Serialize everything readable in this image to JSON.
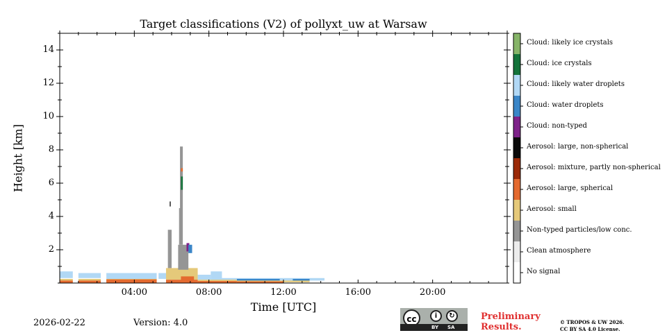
{
  "chart_data": {
    "type": "heatmap",
    "title": "Target classifications (V2) of pollyxt_uw at Warsaw",
    "xlabel": "Time [UTC]",
    "ylabel": "Height [km]",
    "xlim_hours": [
      0,
      24
    ],
    "ylim_km": [
      0,
      15
    ],
    "x_ticks": [
      {
        "value": 4,
        "label": "04:00"
      },
      {
        "value": 8,
        "label": "08:00"
      },
      {
        "value": 12,
        "label": "12:00"
      },
      {
        "value": 16,
        "label": "16:00"
      },
      {
        "value": 20,
        "label": "20:00"
      }
    ],
    "y_ticks": [
      {
        "value": 2,
        "label": "2"
      },
      {
        "value": 4,
        "label": "4"
      },
      {
        "value": 6,
        "label": "6"
      },
      {
        "value": 8,
        "label": "8"
      },
      {
        "value": 10,
        "label": "10"
      },
      {
        "value": 12,
        "label": "12"
      },
      {
        "value": 14,
        "label": "14"
      }
    ],
    "classes": [
      {
        "code": 0,
        "label": "No signal",
        "color": "#ffffff"
      },
      {
        "code": 1,
        "label": "Clean atmosphere",
        "color": "#ececec"
      },
      {
        "code": 2,
        "label": "Non-typed particles/low conc.",
        "color": "#959595"
      },
      {
        "code": 3,
        "label": "Aerosol: small",
        "color": "#e5c97a"
      },
      {
        "code": 4,
        "label": "Aerosol: large, spherical",
        "color": "#e46a2f"
      },
      {
        "code": 5,
        "label": "Aerosol: mixture, partly non-spherical",
        "color": "#9b2a08"
      },
      {
        "code": 6,
        "label": "Aerosol: large, non-spherical",
        "color": "#0a0a0a"
      },
      {
        "code": 7,
        "label": "Cloud: non-typed",
        "color": "#7e2289"
      },
      {
        "code": 8,
        "label": "Cloud: water droplets",
        "color": "#3a86c8"
      },
      {
        "code": 9,
        "label": "Cloud: likely water droplets",
        "color": "#b1d8f5"
      },
      {
        "code": 10,
        "label": "Cloud: ice crystals",
        "color": "#14733a"
      },
      {
        "code": 11,
        "label": "Cloud: likely ice crystals",
        "color": "#86b468"
      }
    ],
    "regions": [
      {
        "class": 9,
        "t0": 0.0,
        "t1": 0.7,
        "h0": 0.3,
        "h1": 0.7
      },
      {
        "class": 9,
        "t0": 1.0,
        "t1": 2.2,
        "h0": 0.3,
        "h1": 0.6
      },
      {
        "class": 9,
        "t0": 2.5,
        "t1": 5.2,
        "h0": 0.25,
        "h1": 0.6
      },
      {
        "class": 9,
        "t0": 5.3,
        "t1": 5.8,
        "h0": 0.25,
        "h1": 0.6
      },
      {
        "class": 9,
        "t0": 7.4,
        "t1": 8.1,
        "h0": 0.2,
        "h1": 0.5
      },
      {
        "class": 9,
        "t0": 8.1,
        "t1": 8.7,
        "h0": 0.1,
        "h1": 0.7
      },
      {
        "class": 9,
        "t0": 8.7,
        "t1": 14.2,
        "h0": 0.15,
        "h1": 0.3
      },
      {
        "class": 8,
        "t0": 9.5,
        "t1": 11.8,
        "h0": 0.1,
        "h1": 0.25
      },
      {
        "class": 8,
        "t0": 12.5,
        "t1": 13.4,
        "h0": 0.1,
        "h1": 0.25
      },
      {
        "class": 3,
        "t0": 0.0,
        "t1": 0.7,
        "h0": 0.05,
        "h1": 0.25
      },
      {
        "class": 3,
        "t0": 1.0,
        "t1": 2.2,
        "h0": 0.05,
        "h1": 0.25
      },
      {
        "class": 3,
        "t0": 2.5,
        "t1": 5.2,
        "h0": 0.05,
        "h1": 0.25
      },
      {
        "class": 3,
        "t0": 5.7,
        "t1": 7.4,
        "h0": 0.2,
        "h1": 0.9
      },
      {
        "class": 3,
        "t0": 7.4,
        "t1": 9.5,
        "h0": 0.05,
        "h1": 0.2
      },
      {
        "class": 3,
        "t0": 9.5,
        "t1": 13.4,
        "h0": 0.05,
        "h1": 0.15
      },
      {
        "class": 4,
        "t0": 0.0,
        "t1": 0.7,
        "h0": 0.0,
        "h1": 0.15
      },
      {
        "class": 4,
        "t0": 1.0,
        "t1": 2.2,
        "h0": 0.0,
        "h1": 0.15
      },
      {
        "class": 4,
        "t0": 2.5,
        "t1": 5.2,
        "h0": 0.0,
        "h1": 0.22
      },
      {
        "class": 4,
        "t0": 5.7,
        "t1": 7.4,
        "h0": 0.0,
        "h1": 0.2
      },
      {
        "class": 4,
        "t0": 6.5,
        "t1": 7.2,
        "h0": 0.0,
        "h1": 0.4
      },
      {
        "class": 4,
        "t0": 7.4,
        "t1": 9.5,
        "h0": 0.0,
        "h1": 0.12
      },
      {
        "class": 4,
        "t0": 9.5,
        "t1": 12.0,
        "h0": 0.0,
        "h1": 0.1
      },
      {
        "class": 2,
        "t0": 5.8,
        "t1": 6.0,
        "h0": 0.9,
        "h1": 3.2
      },
      {
        "class": 2,
        "t0": 6.35,
        "t1": 6.9,
        "h0": 0.8,
        "h1": 2.3
      },
      {
        "class": 2,
        "t0": 6.4,
        "t1": 6.6,
        "h0": 2.3,
        "h1": 4.5
      },
      {
        "class": 2,
        "t0": 6.45,
        "t1": 6.6,
        "h0": 4.5,
        "h1": 8.2
      },
      {
        "class": 7,
        "t0": 6.8,
        "t1": 6.95,
        "h0": 1.9,
        "h1": 2.4
      },
      {
        "class": 8,
        "t0": 6.9,
        "t1": 7.1,
        "h0": 1.8,
        "h1": 2.3
      },
      {
        "class": 10,
        "t0": 6.5,
        "t1": 6.6,
        "h0": 5.6,
        "h1": 6.4
      },
      {
        "class": 4,
        "t0": 6.5,
        "t1": 6.6,
        "h0": 6.7,
        "h1": 6.9
      },
      {
        "class": 6,
        "t0": 5.9,
        "t1": 5.95,
        "h0": 4.6,
        "h1": 4.9
      }
    ]
  },
  "colorbar_labels_top_to_bottom": [
    "Cloud: likely ice crystals",
    "Cloud: ice crystals",
    "Cloud: likely water droplets",
    "Cloud: water droplets",
    "Cloud: non-typed",
    "Aerosol: large, non-spherical",
    "Aerosol: mixture, partly non-spherical",
    "Aerosol: large, spherical",
    "Aerosol: small",
    "Non-typed particles/low conc.",
    "Clean atmosphere",
    "No signal"
  ],
  "footer": {
    "date": "2026-02-22",
    "version": "Version: 4.0",
    "preliminary": "Preliminary Results.",
    "copyright_line1": "© TROPOS & UW 2026.",
    "copyright_line2": "CC BY SA 4.0 License.",
    "license_cc": "cc",
    "license_by": "BY",
    "license_sa": "SA"
  }
}
